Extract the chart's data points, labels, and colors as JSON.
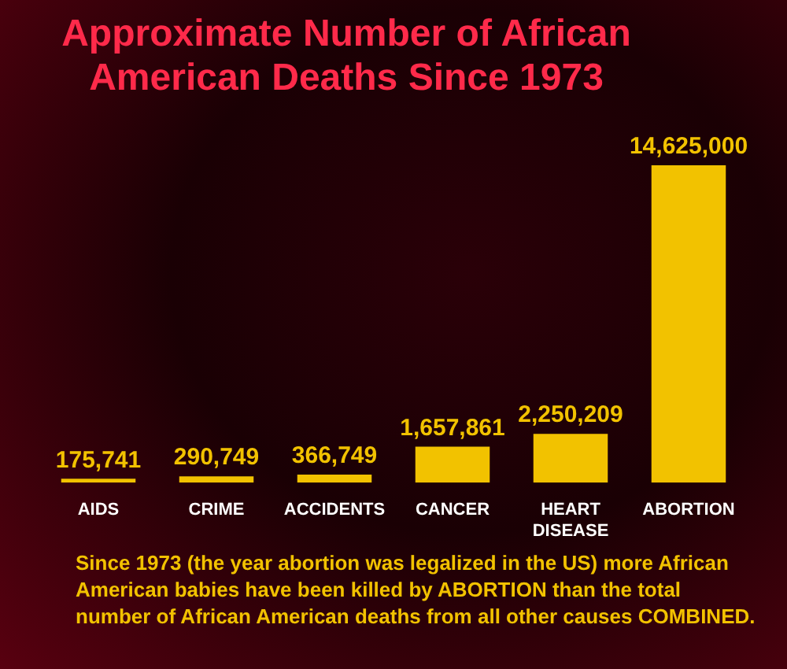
{
  "chart_data": {
    "type": "bar",
    "title": "Approximate Number of African American Deaths Since 1973",
    "categories": [
      "AIDS",
      "CRIME",
      "ACCIDENTS",
      "CANCER",
      "HEART DISEASE",
      "ABORTION"
    ],
    "values": [
      175741,
      290749,
      366749,
      1657861,
      2250209,
      14625000
    ],
    "color": "#f2c200",
    "value_labels": [
      "175,741",
      "290,749",
      "366,749",
      "1,657,861",
      "2,250,209",
      "14,625,000"
    ],
    "annotations": [
      "Since 1973 (the year abortion was legalized in the US) more African American babies have been killed by ABORTION than the total number of African American deaths from all other causes COMBINED."
    ]
  }
}
